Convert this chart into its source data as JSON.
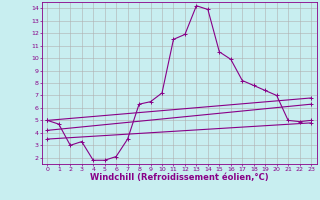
{
  "background_color": "#c8eef0",
  "line_color": "#880088",
  "grid_color": "#b0b0b0",
  "xlabel": "Windchill (Refroidissement éolien,°C)",
  "xlabel_fontsize": 6.0,
  "xlim": [
    -0.5,
    23.5
  ],
  "ylim": [
    1.5,
    14.5
  ],
  "yticks": [
    2,
    3,
    4,
    5,
    6,
    7,
    8,
    9,
    10,
    11,
    12,
    13,
    14
  ],
  "xticks": [
    0,
    1,
    2,
    3,
    4,
    5,
    6,
    7,
    8,
    9,
    10,
    11,
    12,
    13,
    14,
    15,
    16,
    17,
    18,
    19,
    20,
    21,
    22,
    23
  ],
  "curve1_x": [
    0,
    1,
    2,
    3,
    4,
    5,
    6,
    7,
    8,
    9,
    10,
    11,
    12,
    13,
    14,
    15,
    16,
    17,
    18,
    19,
    20,
    21,
    22,
    23
  ],
  "curve1_y": [
    5.0,
    4.7,
    3.0,
    3.3,
    1.8,
    1.8,
    2.1,
    3.5,
    6.3,
    6.5,
    7.2,
    11.5,
    11.9,
    14.2,
    13.9,
    10.5,
    9.9,
    8.2,
    7.8,
    7.4,
    7.0,
    5.0,
    4.9,
    5.0
  ],
  "curve2_x": [
    0,
    23
  ],
  "curve2_y": [
    5.0,
    6.8
  ],
  "curve3_x": [
    0,
    23
  ],
  "curve3_y": [
    4.2,
    6.3
  ],
  "curve4_x": [
    0,
    23
  ],
  "curve4_y": [
    3.5,
    4.8
  ]
}
